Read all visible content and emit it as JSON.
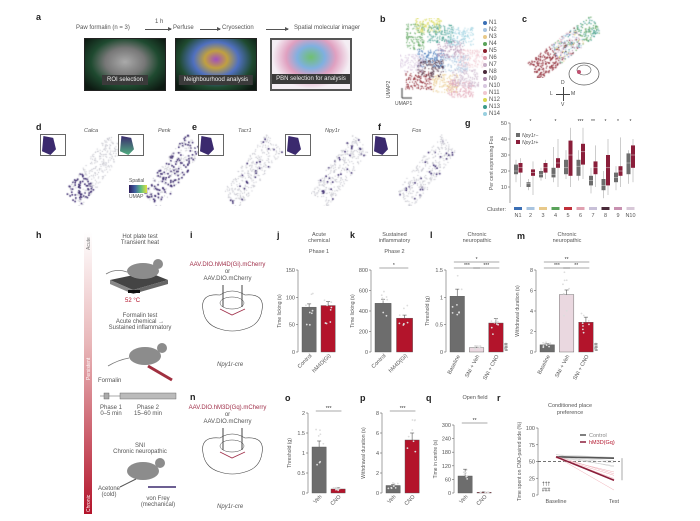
{
  "panels": {
    "a": "a",
    "b": "b",
    "c": "c",
    "d": "d",
    "e": "e",
    "f": "f",
    "g": "g",
    "h": "h",
    "i": "i",
    "j": "j",
    "k": "k",
    "l": "l",
    "m": "m",
    "n": "n",
    "o": "o",
    "p": "p",
    "q": "q",
    "r": "r"
  },
  "a": {
    "start": "Paw formalin (n = 3)",
    "interval": "1 h",
    "steps": [
      "Perfuse",
      "Cryosection",
      "Spatial molecular imager"
    ],
    "images": [
      "ROI selection",
      "Neighbourhood analysis",
      "PBN selection for analysis"
    ]
  },
  "b": {
    "xlabel": "UMAP1",
    "ylabel": "UMAP2",
    "legend": [
      {
        "label": "N1",
        "color": "#3b6fb5"
      },
      {
        "label": "N2",
        "color": "#a8c4e0"
      },
      {
        "label": "N3",
        "color": "#e8c98a"
      },
      {
        "label": "N4",
        "color": "#5aa35a"
      },
      {
        "label": "N5",
        "color": "#8a1e2a"
      },
      {
        "label": "N6",
        "color": "#e0a0b0"
      },
      {
        "label": "N7",
        "color": "#c8b0c8"
      },
      {
        "label": "N8",
        "color": "#4a2a3a"
      },
      {
        "label": "N9",
        "color": "#b090b0"
      },
      {
        "label": "N10",
        "color": "#d8c8e0"
      },
      {
        "label": "N11",
        "color": "#f0c8d0"
      },
      {
        "label": "N12",
        "color": "#d8d850"
      },
      {
        "label": "N13",
        "color": "#3a9a8a"
      },
      {
        "label": "N14",
        "color": "#9ad0e0"
      }
    ]
  },
  "c": {
    "compass": {
      "d": "D",
      "v": "V",
      "l": "L",
      "m": "M"
    }
  },
  "genes": {
    "d": [
      "Calca",
      "Penk"
    ],
    "e": [
      "Tacr1",
      "Npy1r"
    ],
    "f": [
      "Fos"
    ],
    "scale_top": "Spatial",
    "scale_bottom": "UMAP"
  },
  "chart_data": [
    {
      "id": "g",
      "type": "box",
      "ylabel": "Per cent expressing Fos",
      "ylim": [
        0,
        50
      ],
      "yticks": [
        10,
        20,
        30,
        40,
        50
      ],
      "xlabel": "Cluster:",
      "categories": [
        "N1",
        "2",
        "3",
        "4",
        "5",
        "6",
        "7",
        "8",
        "9",
        "N10"
      ],
      "cluster_colors": [
        "#3b6fb5",
        "#a8c4e0",
        "#e8c98a",
        "#5aa35a",
        "#c0303a",
        "#e0a0b0",
        "#c8c0d8",
        "#4a2a3a",
        "#c890b0",
        "#d8c8d8"
      ],
      "legend": [
        "Npy1r−",
        "Npy1r+"
      ],
      "colors": [
        "#6d6d6d",
        "#8a1e3a"
      ],
      "series": [
        {
          "name": "Npy1r−",
          "values": [
            [
              13,
              18,
              20,
              24,
              27
            ],
            [
              8,
              10,
              12,
              13,
              15
            ],
            [
              14,
              16,
              18,
              20,
              22
            ],
            [
              13,
              16,
              18,
              22,
              35
            ],
            [
              15,
              18,
              22,
              27,
              33
            ],
            [
              14,
              17,
              23,
              27,
              33
            ],
            [
              6,
              11,
              14,
              17,
              22
            ],
            [
              3,
              8,
              11,
              15,
              20
            ],
            [
              8,
              13,
              16,
              19,
              23
            ],
            [
              12,
              18,
              25,
              31,
              33
            ]
          ]
        },
        {
          "name": "Npy1r+",
          "values": [
            [
              10,
              19,
              22,
              25,
              28
            ],
            [
              5,
              17,
              19,
              21,
              26
            ],
            [
              15,
              19,
              22,
              25,
              27
            ],
            [
              10,
              22,
              25,
              28,
              40
            ],
            [
              10,
              17,
              30,
              39,
              47
            ],
            [
              15,
              24,
              32,
              37,
              47
            ],
            [
              10,
              18,
              22,
              26,
              36
            ],
            [
              5,
              11,
              22,
              30,
              40
            ],
            [
              10,
              17,
              20,
              23,
              41
            ],
            [
              13,
              22,
              30,
              36,
              40
            ]
          ]
        }
      ],
      "significance": [
        "",
        "*",
        "",
        "*",
        "",
        "***",
        "**",
        "*",
        "*",
        "*"
      ]
    },
    {
      "id": "j",
      "type": "bar",
      "title": [
        "Acute",
        "chemical"
      ],
      "subtitle": "Phase 1",
      "ylabel": "Time licking (s)",
      "ylim": [
        0,
        150
      ],
      "yticks": [
        0,
        50,
        100,
        150
      ],
      "categories": [
        "Control",
        "hM4D(Gi)"
      ],
      "values": [
        82,
        85
      ],
      "errors": [
        6,
        7
      ],
      "colors": [
        "#6d6d6d",
        "#b3142b"
      ],
      "sig": []
    },
    {
      "id": "k",
      "type": "bar",
      "title": [
        "Sustained",
        "inflammatory"
      ],
      "subtitle": "Phase 2",
      "ylabel": "Time licking (s)",
      "ylim": [
        0,
        800
      ],
      "yticks": [
        0,
        200,
        400,
        600,
        800
      ],
      "categories": [
        "Control",
        "hM4D(Gi)"
      ],
      "values": [
        475,
        330
      ],
      "errors": [
        40,
        30
      ],
      "colors": [
        "#6d6d6d",
        "#b3142b"
      ],
      "sig": [
        {
          "from": 0,
          "to": 1,
          "label": "*"
        }
      ]
    },
    {
      "id": "l",
      "type": "bar",
      "title": [
        "Chronic",
        "neuropathic"
      ],
      "ylabel": "Threshold (g)",
      "ylim": [
        0,
        1.5
      ],
      "yticks": [
        0,
        0.5,
        1.0,
        1.5
      ],
      "categories": [
        "Baseline",
        "SNI + Veh",
        "SNI + CNO"
      ],
      "values": [
        1.02,
        0.08,
        0.53
      ],
      "errors": [
        0.13,
        0.03,
        0.08
      ],
      "colors": [
        "#6d6d6d",
        "#ead8e0",
        "#b3142b"
      ],
      "sig": [
        {
          "from": 0,
          "to": 1,
          "label": "***"
        },
        {
          "from": 1,
          "to": 2,
          "label": "***"
        },
        {
          "from": 0,
          "to": 2,
          "label": "*"
        }
      ],
      "marker": "###"
    },
    {
      "id": "m",
      "type": "bar",
      "title": [
        "Chronic",
        "neuropathic"
      ],
      "ylabel": "Withdrawal duration (s)",
      "ylim": [
        0,
        8
      ],
      "yticks": [
        0,
        2,
        4,
        6,
        8
      ],
      "categories": [
        "Baseline",
        "SNI + Veh",
        "SNI + CNO"
      ],
      "values": [
        0.7,
        5.6,
        2.9
      ],
      "errors": [
        0.1,
        0.45,
        0.5
      ],
      "colors": [
        "#6d6d6d",
        "#ead8e0",
        "#b3142b"
      ],
      "sig": [
        {
          "from": 0,
          "to": 1,
          "label": "***"
        },
        {
          "from": 1,
          "to": 2,
          "label": "**"
        },
        {
          "from": 0,
          "to": 2,
          "label": "**"
        }
      ],
      "marker": "###"
    },
    {
      "id": "o",
      "type": "bar",
      "ylabel": "Threshold (g)",
      "ylim": [
        0,
        2.0
      ],
      "yticks": [
        0,
        0.5,
        1.0,
        1.5,
        2.0
      ],
      "categories": [
        "Veh",
        "CNO"
      ],
      "values": [
        1.15,
        0.1
      ],
      "errors": [
        0.15,
        0.03
      ],
      "colors": [
        "#6d6d6d",
        "#b3142b"
      ],
      "sig": [
        {
          "from": 0,
          "to": 1,
          "label": "***"
        }
      ]
    },
    {
      "id": "p",
      "type": "bar",
      "ylabel": "Withdrawal duration (s)",
      "ylim": [
        0,
        8
      ],
      "yticks": [
        0,
        2,
        4,
        6,
        8
      ],
      "categories": [
        "Veh",
        "CNO"
      ],
      "values": [
        0.75,
        5.3
      ],
      "errors": [
        0.1,
        0.7
      ],
      "colors": [
        "#6d6d6d",
        "#b3142b"
      ],
      "sig": [
        {
          "from": 0,
          "to": 1,
          "label": "***"
        }
      ]
    },
    {
      "id": "q",
      "type": "bar",
      "title": [
        "Open field"
      ],
      "ylabel": "Time in centre (s)",
      "ylim": [
        0,
        300
      ],
      "yticks": [
        0,
        60,
        120,
        180,
        240,
        300
      ],
      "categories": [
        "Veh",
        "CNO"
      ],
      "values": [
        75,
        3
      ],
      "errors": [
        30,
        2
      ],
      "colors": [
        "#6d6d6d",
        "#b3142b"
      ],
      "sig": [
        {
          "from": 0,
          "to": 1,
          "label": "**"
        }
      ]
    },
    {
      "id": "r",
      "type": "line",
      "title": [
        "Conditioned place",
        "preference"
      ],
      "ylabel": "Time spent on CNO-paired side (%)",
      "ylim": [
        0,
        100
      ],
      "yticks": [
        0,
        25,
        50,
        75,
        100
      ],
      "x": [
        "Baseline",
        "Test"
      ],
      "series": [
        {
          "name": "Control",
          "values": [
            57,
            55
          ],
          "color": "#555555"
        },
        {
          "name": "hM3D(Gq)",
          "values": [
            57,
            22
          ],
          "color": "#8a1e3a"
        }
      ],
      "reference": 50,
      "sig": "***",
      "markers": [
        "†††",
        "###"
      ]
    }
  ],
  "h": {
    "axis": [
      "Acute",
      "Persistent",
      "Chronic"
    ],
    "hotplate": [
      "Hot plate test",
      "Transient heat"
    ],
    "temp": "52 °C",
    "formalin": [
      "Formalin test",
      "Acute chemical →",
      "Sustained inflammatory"
    ],
    "formalin_label": "Formalin",
    "phase1": [
      "Phase 1",
      "0–5 min"
    ],
    "phase2": [
      "Phase 2",
      "15–60 min"
    ],
    "sni": [
      "SNI",
      "Chronic neuropathic"
    ],
    "acetone": [
      "Acetone",
      "(cold)"
    ],
    "vonfrey": [
      "von Frey",
      "(mechanical)"
    ]
  },
  "i": {
    "virus1": "AAV.DIO.hM4D(Gi).mCherry",
    "or": "or",
    "virus2": "AAV.DIO.mCherry",
    "mouse": "Npy1r-cre"
  },
  "n": {
    "virus1": "AAV.DIO.hM3D(Gq).mCherry",
    "or": "or",
    "virus2": "AAV.DIO.mCherry",
    "mouse": "Npy1r-cre"
  }
}
